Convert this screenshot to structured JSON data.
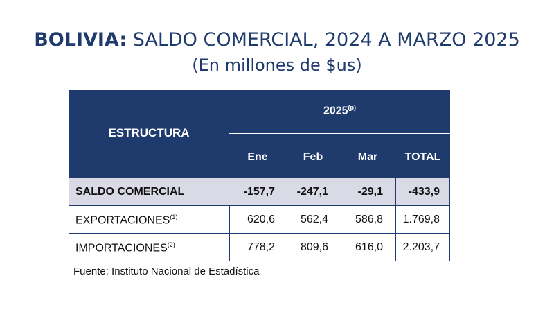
{
  "title": {
    "bold": "BOLIVIA:",
    "rest": "SALDO COMERCIAL, 2024 A MARZO 2025"
  },
  "subtitle": "(En millones de $us)",
  "table": {
    "stub_header": "ESTRUCTURA",
    "year": "2025",
    "year_note": "(p)",
    "columns": [
      "Ene",
      "Feb",
      "Mar",
      "TOTAL"
    ],
    "rows": [
      {
        "label": "SALDO COMERCIAL",
        "note": "",
        "values": [
          "-157,7",
          "-247,1",
          "-29,1",
          "-433,9"
        ]
      },
      {
        "label": "EXPORTACIONES",
        "note": "(1)",
        "values": [
          "620,6",
          "562,4",
          "586,8",
          "1.769,8"
        ]
      },
      {
        "label": "IMPORTACIONES",
        "note": "(2)",
        "values": [
          "778,2",
          "809,6",
          "616,0",
          "2.203,7"
        ]
      }
    ]
  },
  "source": "Fuente: Instituto Nacional de Estadística",
  "colors": {
    "header_bg": "#1f3b6e",
    "highlight_row": "#d9dae6",
    "title": "#1f3b6e"
  }
}
